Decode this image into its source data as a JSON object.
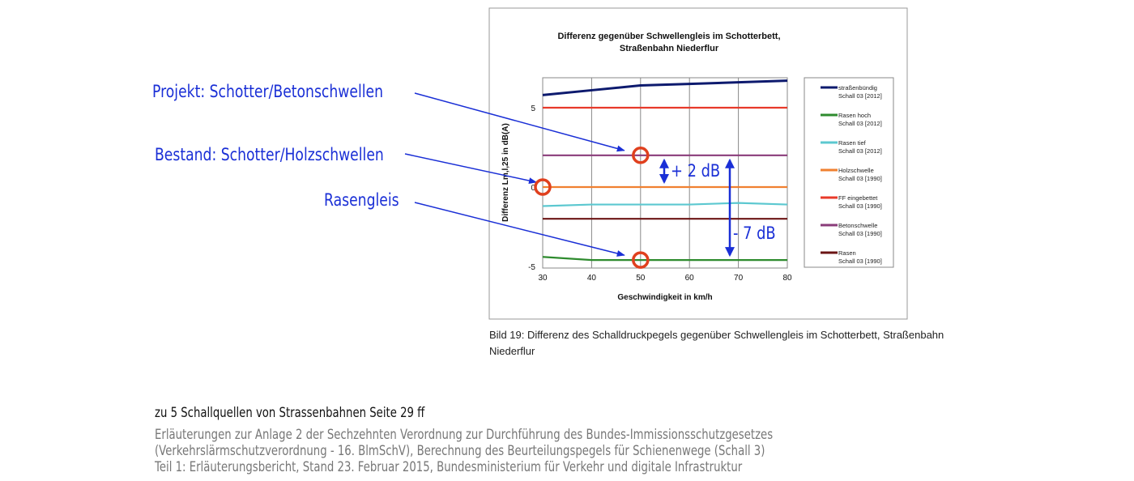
{
  "chart_data": {
    "type": "line",
    "title": "Differenz gegenüber Schwellengleis im Schotterbett, Straßenbahn Niederflur",
    "title_lines": [
      "Differenz gegenüber Schwellengleis im Schotterbett,",
      "Straßenbahn Niederflur"
    ],
    "xlabel": "Geschwindigkeit in km/h",
    "ylabel": "Differenz Lm,l,25 in dB(A)",
    "xlim": [
      30,
      80
    ],
    "ylim": [
      -5.2,
      7
    ],
    "x_ticks": [
      30,
      40,
      50,
      60,
      70,
      80
    ],
    "y_ticks": [
      -5,
      0,
      5
    ],
    "grid": "vertical",
    "legend_position": "right",
    "x": [
      30,
      40,
      50,
      60,
      70,
      80
    ],
    "series": [
      {
        "name": "straßenbündig",
        "sub": "Schall 03 [2012]",
        "color": "#0d1a6e",
        "values": [
          5.8,
          6.1,
          6.4,
          6.5,
          6.6,
          6.7
        ]
      },
      {
        "name": "Rasen hoch",
        "sub": "Schall 03 [2012]",
        "color": "#2e8b2e",
        "values": [
          -4.4,
          -4.6,
          -4.6,
          -4.6,
          -4.6,
          -4.6
        ]
      },
      {
        "name": "Rasen tief",
        "sub": "Schall 03 [2012]",
        "color": "#5cc8d0",
        "values": [
          -1.2,
          -1.1,
          -1.1,
          -1.1,
          -1.0,
          -1.1
        ]
      },
      {
        "name": "Holzschwelle",
        "sub": "Schall 03 [1990]",
        "color": "#f08030",
        "values": [
          0,
          0,
          0,
          0,
          0,
          0
        ]
      },
      {
        "name": "FF eingebettet",
        "sub": "Schall 03 [1990]",
        "color": "#e83a2a",
        "values": [
          5,
          5,
          5,
          5,
          5,
          5
        ]
      },
      {
        "name": "Betonschwelle",
        "sub": "Schall 03 [1990]",
        "color": "#8a3c7a",
        "values": [
          2,
          2,
          2,
          2,
          2,
          2
        ]
      },
      {
        "name": "Rasen",
        "sub": "Schall 03 [1990]",
        "color": "#6b1414",
        "values": [
          -2,
          -2,
          -2,
          -2,
          -2,
          -2
        ]
      }
    ],
    "annotations": [
      {
        "text": "Projekt: Schotter/Betonschwellen",
        "x": 50,
        "y": 2
      },
      {
        "text": "Bestand: Schotter/Holzschwellen",
        "x": 30,
        "y": 0
      },
      {
        "text": "Rasengleis",
        "x": 50,
        "y": -4.6
      }
    ],
    "differences": [
      {
        "text": "+ 2 dB",
        "from": 0,
        "to": 2
      },
      {
        "text": "- 7 dB",
        "from": -4.6,
        "to": 2
      }
    ],
    "annotation_color": "#1a2fd6",
    "marker_color": "#e0401e"
  },
  "caption": "Bild 19: Differenz des Schalldruckpegels gegenüber Schwellengleis im Schotterbett, Straßenbahn Niederflur",
  "footer": {
    "title": "zu 5 Schallquellen von Strassenbahnen Seite 29 ff",
    "lines": [
      "Erläuterungen zur Anlage 2 der Sechzehnten Verordnung zur Durchführung des Bundes-Immissionsschutzgesetzes",
      "(Verkehrslärmschutzverordnung - 16. BlmSchV), Berechnung des Beurteilungspegels für Schienenwege (Schall 3)",
      "Teil 1: Erläuterungsbericht, Stand 23. Februar 2015, Bundesministerium für Verkehr und digitale Infrastruktur"
    ]
  }
}
